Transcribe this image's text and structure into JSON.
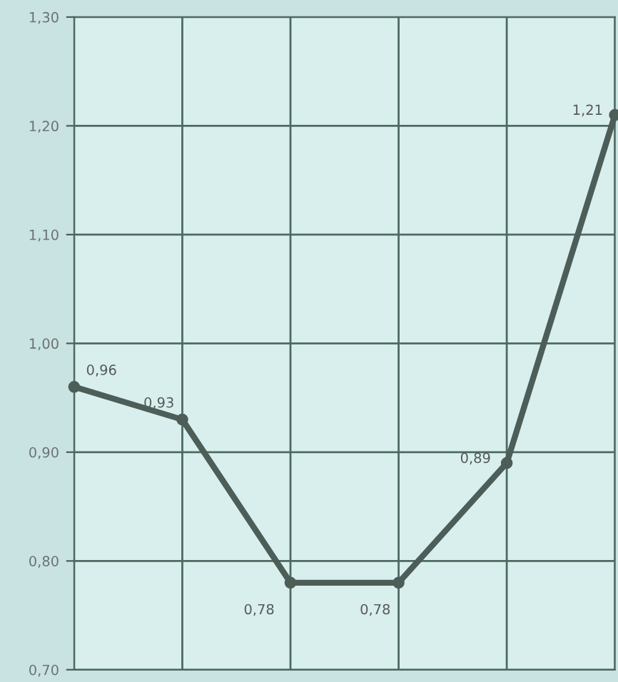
{
  "chart_data": {
    "type": "line",
    "categories": [
      null,
      null,
      null,
      null,
      null,
      null
    ],
    "series": [
      {
        "color": "#4d5d58",
        "values": [
          0.96,
          0.93,
          0.78,
          0.78,
          0.89,
          1.21
        ],
        "value_labels": [
          "0,96",
          "0,93",
          "0,78",
          "0,78",
          "0,89",
          "1,21"
        ]
      }
    ],
    "ylim": [
      0.7,
      1.3
    ],
    "yticks": [
      {
        "value": 0.7,
        "label": "0,70"
      },
      {
        "value": 0.8,
        "label": "0,80"
      },
      {
        "value": 0.9,
        "label": "0,90"
      },
      {
        "value": 1.0,
        "label": "1,00"
      },
      {
        "value": 1.1,
        "label": "1,10"
      },
      {
        "value": 1.2,
        "label": "1,20"
      },
      {
        "value": 1.3,
        "label": "1,30"
      }
    ],
    "grid": true,
    "marker": "circle",
    "line_style": "solid",
    "tick_labels": "y"
  }
}
